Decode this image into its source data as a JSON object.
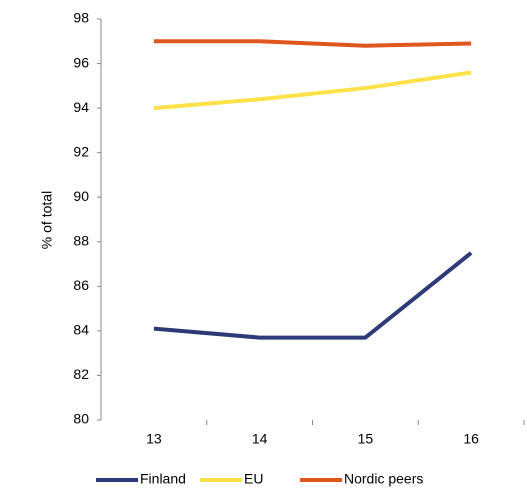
{
  "chart_data": {
    "type": "line",
    "ylabel": "% of total",
    "categories": [
      "13",
      "14",
      "15",
      "16"
    ],
    "series": [
      {
        "name": "Finland",
        "color": "#2e3a78",
        "values": [
          84.1,
          83.7,
          83.7,
          87.5
        ]
      },
      {
        "name": "EU",
        "color": "#ffe14a",
        "values": [
          94.0,
          94.4,
          94.9,
          95.6
        ]
      },
      {
        "name": "Nordic peers",
        "color": "#e0561f",
        "values": [
          97.0,
          97.0,
          96.8,
          96.9
        ]
      }
    ],
    "ylim": [
      80,
      98
    ],
    "yticks": [
      80,
      82,
      84,
      86,
      88,
      90,
      92,
      94,
      96,
      98
    ],
    "grid": false,
    "legend": "bottom"
  }
}
